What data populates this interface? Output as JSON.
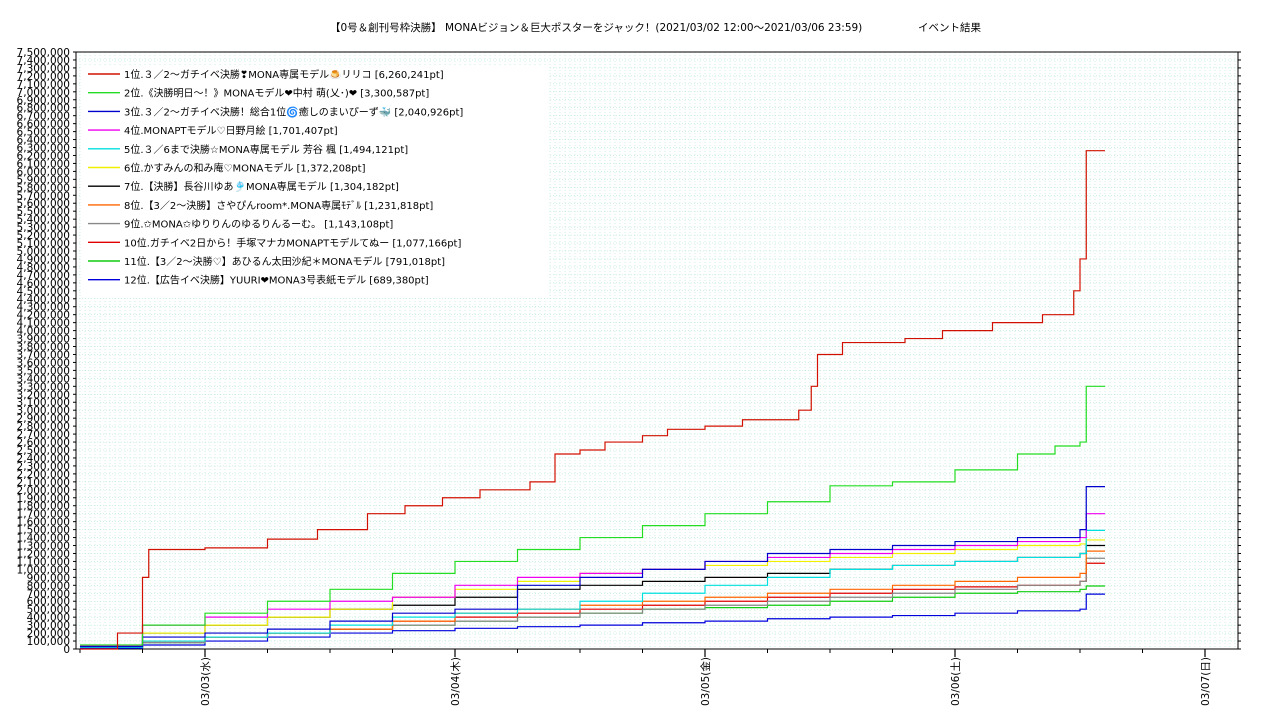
{
  "chart_data": {
    "type": "line",
    "title": "【0号＆創刊号枠決勝】 MONAビジョン＆巨大ポスターをジャック！(2021/03/02 12:00〜2021/03/06 23:59)",
    "subtitle": "イベント結果",
    "xlabel": "",
    "ylabel": "",
    "x_ticks": [
      "03/03(水)",
      "03/04(木)",
      "03/05(金)",
      "03/06(土)",
      "03/07(日)"
    ],
    "x_range": [
      "2021/03/02 12:00",
      "2021/03/06 23:59"
    ],
    "ylim": [
      0,
      7500000
    ],
    "y_ticks": [
      "0",
      "100,000",
      "200,000",
      "300,000",
      "400,000",
      "500,000",
      "600,000",
      "700,000",
      "800,000",
      "900,000",
      "1,000,000",
      "1,100,000",
      "1,200,000",
      "1,300,000",
      "1,400,000",
      "1,500,000",
      "1,600,000",
      "1,700,000",
      "1,800,000",
      "1,900,000",
      "2,000,000",
      "2,100,000",
      "2,200,000",
      "2,300,000",
      "2,400,000",
      "2,500,000",
      "2,600,000",
      "2,700,000",
      "2,800,000",
      "2,900,000",
      "3,000,000",
      "3,100,000",
      "3,200,000",
      "3,300,000",
      "3,400,000",
      "3,500,000",
      "3,600,000",
      "3,700,000",
      "3,800,000",
      "3,900,000",
      "4,000,000",
      "4,100,000",
      "4,200,000",
      "4,300,000",
      "4,400,000",
      "4,500,000",
      "4,600,000",
      "4,700,000",
      "4,800,000",
      "4,900,000",
      "5,000,000",
      "5,100,000",
      "5,200,000",
      "5,300,000",
      "5,400,000",
      "5,500,000",
      "5,600,000",
      "5,700,000",
      "5,800,000",
      "5,900,000",
      "6,000,000",
      "6,100,000",
      "6,200,000",
      "6,300,000",
      "6,400,000",
      "6,500,000",
      "6,600,000",
      "6,700,000",
      "6,800,000",
      "6,900,000",
      "7,000,000",
      "7,100,000",
      "7,200,000",
      "7,300,000",
      "7,400,000",
      "7,500,000"
    ],
    "grid": true,
    "legend_position": "top-left",
    "series": [
      {
        "name": "1位.３／2〜ガチイベ決勝❣MONA専属モデル🍮リリコ [6,260,241pt]",
        "color": "#d01000",
        "points": [
          [
            0,
            0
          ],
          [
            0.3,
            200000
          ],
          [
            0.5,
            900000
          ],
          [
            0.55,
            1250000
          ],
          [
            1.0,
            1270000
          ],
          [
            1.5,
            1380000
          ],
          [
            1.9,
            1500000
          ],
          [
            2.3,
            1700000
          ],
          [
            2.6,
            1800000
          ],
          [
            2.9,
            1900000
          ],
          [
            3.2,
            2000000
          ],
          [
            3.6,
            2100000
          ],
          [
            3.8,
            2450000
          ],
          [
            4.0,
            2500000
          ],
          [
            4.2,
            2600000
          ],
          [
            4.5,
            2680000
          ],
          [
            4.7,
            2760000
          ],
          [
            5.0,
            2800000
          ],
          [
            5.3,
            2880000
          ],
          [
            5.75,
            3000000
          ],
          [
            5.85,
            3300000
          ],
          [
            5.9,
            3700000
          ],
          [
            6.1,
            3850000
          ],
          [
            6.6,
            3900000
          ],
          [
            6.9,
            4000000
          ],
          [
            7.3,
            4100000
          ],
          [
            7.7,
            4200000
          ],
          [
            7.95,
            4500000
          ],
          [
            8.0,
            4900000
          ],
          [
            8.05,
            6260000
          ],
          [
            8.2,
            6260000
          ]
        ]
      },
      {
        "name": "2位.《決勝明日〜！》MONAモデル❤中村 萌(乂･)❤ [3,300,587pt]",
        "color": "#22dd22",
        "points": [
          [
            0,
            50000
          ],
          [
            0.5,
            300000
          ],
          [
            1.0,
            450000
          ],
          [
            1.5,
            600000
          ],
          [
            2.0,
            750000
          ],
          [
            2.5,
            950000
          ],
          [
            3.0,
            1100000
          ],
          [
            3.5,
            1250000
          ],
          [
            4.0,
            1400000
          ],
          [
            4.5,
            1550000
          ],
          [
            5.0,
            1700000
          ],
          [
            5.5,
            1850000
          ],
          [
            6.0,
            2050000
          ],
          [
            6.5,
            2100000
          ],
          [
            7.0,
            2250000
          ],
          [
            7.5,
            2450000
          ],
          [
            7.8,
            2550000
          ],
          [
            8.0,
            2600000
          ],
          [
            8.05,
            3300000
          ],
          [
            8.2,
            3300000
          ]
        ]
      },
      {
        "name": "3位.３／2〜ガチイベ決勝！総合1位🌀癒しのまいぴーず🐳 [2,040,926pt]",
        "color": "#0000cc",
        "points": [
          [
            0,
            30000
          ],
          [
            0.5,
            150000
          ],
          [
            1.0,
            200000
          ],
          [
            1.5,
            250000
          ],
          [
            2.0,
            350000
          ],
          [
            2.5,
            450000
          ],
          [
            3.0,
            500000
          ],
          [
            3.5,
            800000
          ],
          [
            4.0,
            900000
          ],
          [
            4.5,
            1000000
          ],
          [
            5.0,
            1100000
          ],
          [
            5.5,
            1200000
          ],
          [
            6.0,
            1250000
          ],
          [
            6.5,
            1300000
          ],
          [
            7.0,
            1350000
          ],
          [
            7.5,
            1400000
          ],
          [
            8.0,
            1500000
          ],
          [
            8.05,
            2040000
          ],
          [
            8.2,
            2040000
          ]
        ]
      },
      {
        "name": "4位.MONAPTモデル♡日野月絵 [1,701,407pt]",
        "color": "#ee00ee",
        "points": [
          [
            0,
            40000
          ],
          [
            0.5,
            300000
          ],
          [
            1.0,
            400000
          ],
          [
            1.5,
            500000
          ],
          [
            2.0,
            600000
          ],
          [
            2.5,
            650000
          ],
          [
            3.0,
            800000
          ],
          [
            3.5,
            900000
          ],
          [
            4.0,
            950000
          ],
          [
            4.5,
            1000000
          ],
          [
            5.0,
            1100000
          ],
          [
            5.5,
            1150000
          ],
          [
            6.0,
            1200000
          ],
          [
            6.5,
            1250000
          ],
          [
            7.0,
            1300000
          ],
          [
            7.5,
            1350000
          ],
          [
            8.0,
            1400000
          ],
          [
            8.05,
            1700000
          ],
          [
            8.2,
            1700000
          ]
        ]
      },
      {
        "name": "5位.３／6まで決勝☆MONA専属モデル 芳谷 楓 [1,494,121pt]",
        "color": "#00e0e0",
        "points": [
          [
            0,
            20000
          ],
          [
            0.5,
            100000
          ],
          [
            1.0,
            150000
          ],
          [
            1.5,
            200000
          ],
          [
            2.0,
            300000
          ],
          [
            2.5,
            400000
          ],
          [
            3.0,
            450000
          ],
          [
            3.5,
            500000
          ],
          [
            4.0,
            600000
          ],
          [
            4.5,
            700000
          ],
          [
            5.0,
            800000
          ],
          [
            5.5,
            900000
          ],
          [
            6.0,
            1000000
          ],
          [
            6.5,
            1050000
          ],
          [
            7.0,
            1100000
          ],
          [
            7.5,
            1150000
          ],
          [
            8.0,
            1200000
          ],
          [
            8.05,
            1490000
          ],
          [
            8.2,
            1490000
          ]
        ]
      },
      {
        "name": "6位.かすみんの和み庵♡MONAモデル [1,372,208pt]",
        "color": "#f0f000",
        "points": [
          [
            0,
            20000
          ],
          [
            0.5,
            200000
          ],
          [
            1.0,
            300000
          ],
          [
            1.5,
            400000
          ],
          [
            2.0,
            500000
          ],
          [
            2.5,
            650000
          ],
          [
            3.0,
            750000
          ],
          [
            3.5,
            850000
          ],
          [
            4.0,
            950000
          ],
          [
            4.5,
            1000000
          ],
          [
            5.0,
            1050000
          ],
          [
            5.5,
            1100000
          ],
          [
            6.0,
            1150000
          ],
          [
            6.5,
            1200000
          ],
          [
            7.0,
            1250000
          ],
          [
            7.5,
            1300000
          ],
          [
            8.0,
            1320000
          ],
          [
            8.05,
            1370000
          ],
          [
            8.2,
            1370000
          ]
        ]
      },
      {
        "name": "7位.【決勝】長谷川ゆあ🎐MONA専属モデル [1,304,182pt]",
        "color": "#000000",
        "points": [
          [
            0,
            30000
          ],
          [
            0.5,
            200000
          ],
          [
            1.0,
            300000
          ],
          [
            1.5,
            400000
          ],
          [
            2.0,
            500000
          ],
          [
            2.5,
            550000
          ],
          [
            3.0,
            650000
          ],
          [
            3.5,
            750000
          ],
          [
            4.0,
            800000
          ],
          [
            4.5,
            850000
          ],
          [
            5.0,
            900000
          ],
          [
            5.5,
            950000
          ],
          [
            6.0,
            1000000
          ],
          [
            6.5,
            1050000
          ],
          [
            7.0,
            1100000
          ],
          [
            7.5,
            1150000
          ],
          [
            8.0,
            1200000
          ],
          [
            8.05,
            1300000
          ],
          [
            8.2,
            1300000
          ]
        ]
      },
      {
        "name": "8位.【3／2〜決勝】さやぴんroom*.MONA専属ﾓﾃﾞﾙ [1,231,818pt]",
        "color": "#ff6600",
        "points": [
          [
            0,
            20000
          ],
          [
            0.5,
            100000
          ],
          [
            1.0,
            150000
          ],
          [
            1.5,
            200000
          ],
          [
            2.0,
            250000
          ],
          [
            2.5,
            350000
          ],
          [
            3.0,
            450000
          ],
          [
            3.5,
            500000
          ],
          [
            4.0,
            550000
          ],
          [
            4.5,
            600000
          ],
          [
            5.0,
            650000
          ],
          [
            5.5,
            700000
          ],
          [
            6.0,
            750000
          ],
          [
            6.5,
            800000
          ],
          [
            7.0,
            850000
          ],
          [
            7.5,
            900000
          ],
          [
            8.0,
            950000
          ],
          [
            8.05,
            1230000
          ],
          [
            8.2,
            1230000
          ]
        ]
      },
      {
        "name": "9位.✩MONA✩ゆりりんのゆるりんるーむ。 [1,143,108pt]",
        "color": "#888888",
        "points": [
          [
            0,
            20000
          ],
          [
            0.5,
            80000
          ],
          [
            1.0,
            150000
          ],
          [
            1.5,
            200000
          ],
          [
            2.0,
            250000
          ],
          [
            2.5,
            300000
          ],
          [
            3.0,
            350000
          ],
          [
            3.5,
            400000
          ],
          [
            4.0,
            450000
          ],
          [
            4.5,
            500000
          ],
          [
            5.0,
            550000
          ],
          [
            5.5,
            600000
          ],
          [
            6.0,
            650000
          ],
          [
            6.5,
            700000
          ],
          [
            7.0,
            750000
          ],
          [
            7.5,
            800000
          ],
          [
            8.0,
            850000
          ],
          [
            8.05,
            1140000
          ],
          [
            8.2,
            1140000
          ]
        ]
      },
      {
        "name": "10位.ガチイベ2日から！手塚マナカMONAPTモデルてぬー [1,077,166pt]",
        "color": "#e00000",
        "points": [
          [
            0,
            20000
          ],
          [
            0.5,
            100000
          ],
          [
            1.0,
            150000
          ],
          [
            1.5,
            200000
          ],
          [
            2.0,
            250000
          ],
          [
            2.5,
            350000
          ],
          [
            3.0,
            400000
          ],
          [
            3.5,
            450000
          ],
          [
            4.0,
            500000
          ],
          [
            4.5,
            550000
          ],
          [
            5.0,
            600000
          ],
          [
            5.5,
            650000
          ],
          [
            6.0,
            700000
          ],
          [
            6.5,
            750000
          ],
          [
            7.0,
            780000
          ],
          [
            7.5,
            800000
          ],
          [
            8.0,
            850000
          ],
          [
            8.05,
            1077000
          ],
          [
            8.2,
            1077000
          ]
        ]
      },
      {
        "name": "11位.【3／2〜決勝♡】あひるん太田沙紀＊MONAモデル [791,018pt]",
        "color": "#11cc11",
        "points": [
          [
            0,
            20000
          ],
          [
            0.5,
            80000
          ],
          [
            1.0,
            150000
          ],
          [
            1.5,
            200000
          ],
          [
            2.0,
            250000
          ],
          [
            2.5,
            300000
          ],
          [
            3.0,
            350000
          ],
          [
            3.5,
            400000
          ],
          [
            4.0,
            450000
          ],
          [
            4.5,
            500000
          ],
          [
            5.0,
            520000
          ],
          [
            5.5,
            550000
          ],
          [
            6.0,
            600000
          ],
          [
            6.5,
            650000
          ],
          [
            7.0,
            700000
          ],
          [
            7.5,
            720000
          ],
          [
            8.0,
            750000
          ],
          [
            8.05,
            791000
          ],
          [
            8.2,
            791000
          ]
        ]
      },
      {
        "name": "12位.【広告イベ決勝】YUURI❤MONA3号表紙モデル [689,380pt]",
        "color": "#0000dd",
        "points": [
          [
            0,
            10000
          ],
          [
            0.5,
            50000
          ],
          [
            1.0,
            100000
          ],
          [
            1.5,
            150000
          ],
          [
            2.0,
            200000
          ],
          [
            2.5,
            230000
          ],
          [
            3.0,
            260000
          ],
          [
            3.5,
            280000
          ],
          [
            4.0,
            300000
          ],
          [
            4.5,
            330000
          ],
          [
            5.0,
            350000
          ],
          [
            5.5,
            380000
          ],
          [
            6.0,
            400000
          ],
          [
            6.5,
            420000
          ],
          [
            7.0,
            450000
          ],
          [
            7.5,
            480000
          ],
          [
            8.0,
            500000
          ],
          [
            8.05,
            689000
          ],
          [
            8.2,
            689000
          ]
        ]
      }
    ]
  }
}
